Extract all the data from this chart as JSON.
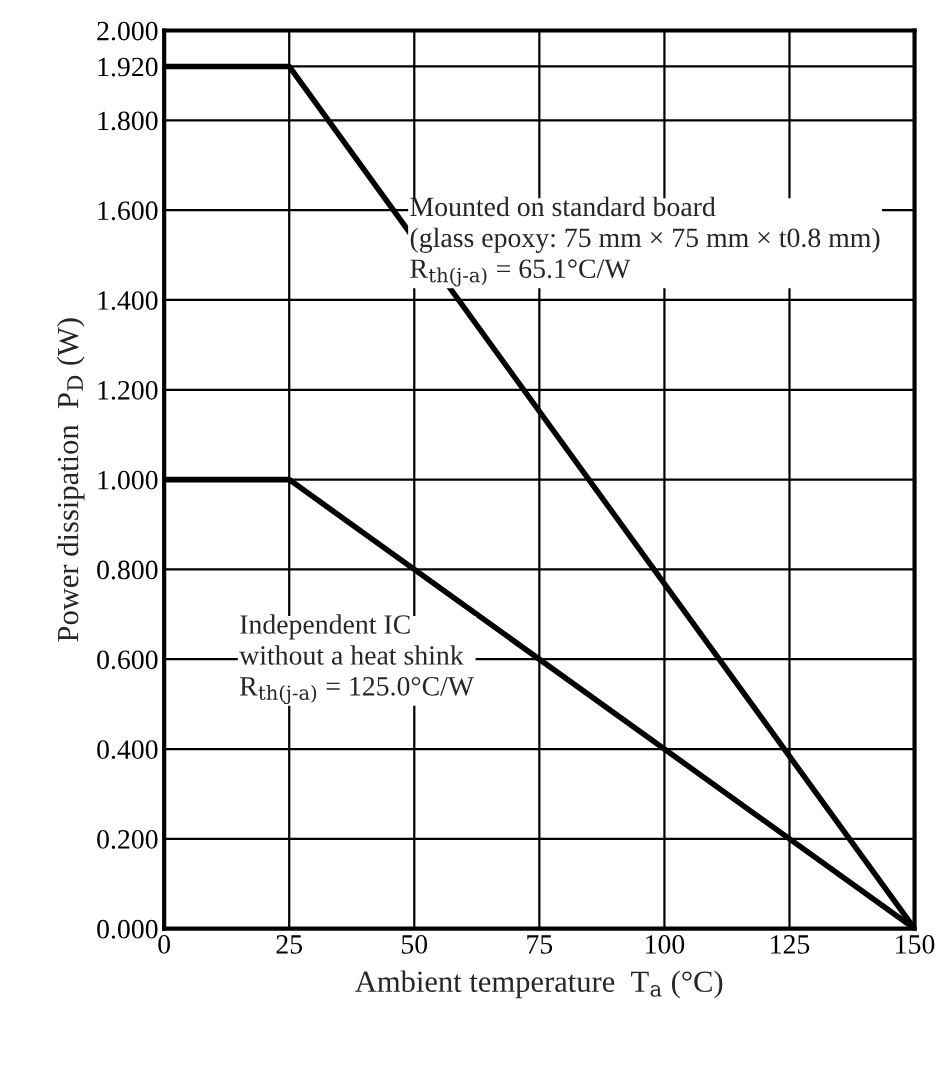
{
  "chart_data": {
    "type": "line",
    "xlabel": "Ambient temperature  T$_{a}$ (°C)",
    "ylabel": "Power dissipation  P$_{D}$ (W)",
    "xlim": [
      0,
      150
    ],
    "xticks": [
      0,
      25,
      50,
      75,
      100,
      125,
      150
    ],
    "ylim": [
      0,
      2.0
    ],
    "yticks": [
      {
        "value": 0,
        "label": "0.000"
      },
      {
        "value": 0.2,
        "label": "0.200"
      },
      {
        "value": 0.4,
        "label": "0.400"
      },
      {
        "value": 0.6,
        "label": "0.600"
      },
      {
        "value": 0.8,
        "label": "0.800"
      },
      {
        "value": 1.0,
        "label": "1.000"
      },
      {
        "value": 1.2,
        "label": "1.200"
      },
      {
        "value": 1.4,
        "label": "1.400"
      },
      {
        "value": 1.6,
        "label": "1.600"
      },
      {
        "value": 1.8,
        "label": "1.800"
      },
      {
        "value": 1.92,
        "label": "1.920"
      },
      {
        "value": 2.0,
        "label": "2.000"
      }
    ],
    "series": [
      {
        "color": "#000000",
        "x": [
          0,
          25,
          150
        ],
        "values": [
          1.92,
          1.92,
          0
        ]
      },
      {
        "color": "#000000",
        "x": [
          0,
          25,
          150
        ],
        "values": [
          1.0,
          1.0,
          0
        ]
      }
    ],
    "annotations": [
      "Mounted on standard board\n(glass epoxy: 75 mm × 75 mm × t0.8 mm)\nR$_{th(j-a)}$ = 65.1°C/W",
      "Independent IC\nwithout a heat shink\nR$_{th(j-a)}$ = 125.0°C/W"
    ],
    "grid": true,
    "legend": false,
    "marker": "none",
    "line_style": "solid"
  }
}
